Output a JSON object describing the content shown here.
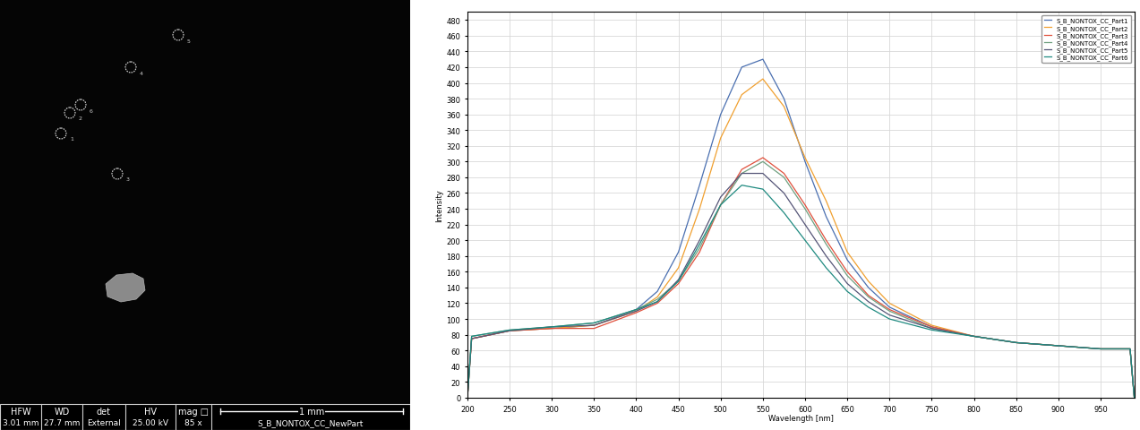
{
  "sem_image": {
    "circle_labels": [
      "1",
      "2",
      "3",
      "4",
      "5",
      "6"
    ],
    "data_bar": {
      "headers": [
        "HFW",
        "WD",
        "det",
        "HV",
        "mag □"
      ],
      "values": [
        "3.01 mm",
        "27.7 mm",
        "External",
        "25.00 kV",
        "85 x",
        "S_B_NONTOX_CC_NewPart"
      ],
      "scale_bar": "1 mm"
    }
  },
  "chart_data": {
    "type": "line",
    "x_label": "Wavelength [nm]",
    "y_label": "Intensity",
    "xlim": [
      200,
      990
    ],
    "xticks": [
      200,
      250,
      300,
      350,
      400,
      450,
      500,
      550,
      600,
      650,
      700,
      750,
      800,
      850,
      900,
      950
    ],
    "ylim": [
      0,
      490
    ],
    "yticks": [
      0,
      20,
      40,
      60,
      80,
      100,
      120,
      140,
      160,
      180,
      200,
      220,
      240,
      260,
      280,
      300,
      320,
      340,
      360,
      380,
      400,
      420,
      440,
      460,
      480
    ],
    "grid": true,
    "legend": "upper right",
    "x": [
      200,
      205,
      250,
      300,
      350,
      400,
      425,
      450,
      475,
      500,
      525,
      550,
      575,
      600,
      625,
      650,
      675,
      700,
      750,
      800,
      850,
      900,
      950,
      985,
      990
    ],
    "series": [
      {
        "name": "S_B_NONTOX_CC_Part1",
        "color": "#4a6fb0",
        "values": [
          0,
          75,
          85,
          88,
          92,
          112,
          135,
          185,
          270,
          360,
          420,
          430,
          380,
          300,
          230,
          175,
          140,
          115,
          90,
          78,
          70,
          66,
          62,
          62,
          0
        ]
      },
      {
        "name": "S_B_NONTOX_CC_Part2",
        "color": "#f0a030",
        "values": [
          0,
          75,
          85,
          88,
          92,
          110,
          128,
          165,
          240,
          330,
          385,
          405,
          370,
          305,
          250,
          185,
          148,
          120,
          92,
          78,
          70,
          66,
          62,
          62,
          0
        ]
      },
      {
        "name": "S_B_NONTOX_CC_Part3",
        "color": "#e0503c",
        "values": [
          0,
          75,
          85,
          88,
          88,
          108,
          120,
          145,
          185,
          245,
          290,
          305,
          285,
          245,
          200,
          160,
          130,
          112,
          90,
          78,
          70,
          66,
          62,
          62,
          0
        ]
      },
      {
        "name": "S_B_NONTOX_CC_Part4",
        "color": "#70a080",
        "values": [
          0,
          78,
          86,
          90,
          95,
          112,
          125,
          148,
          190,
          245,
          285,
          300,
          280,
          240,
          195,
          155,
          128,
          110,
          88,
          78,
          70,
          66,
          62,
          62,
          0
        ]
      },
      {
        "name": "S_B_NONTOX_CC_Part5",
        "color": "#555577",
        "values": [
          0,
          75,
          85,
          90,
          92,
          110,
          122,
          150,
          200,
          255,
          285,
          285,
          260,
          220,
          180,
          145,
          122,
          105,
          88,
          78,
          70,
          66,
          62,
          62,
          0
        ]
      },
      {
        "name": "S_B_NONTOX_CC_Part6",
        "color": "#1f8a80",
        "values": [
          0,
          78,
          86,
          90,
          95,
          112,
          122,
          148,
          195,
          245,
          270,
          265,
          235,
          200,
          165,
          135,
          115,
          100,
          86,
          78,
          70,
          66,
          62,
          62,
          0
        ]
      }
    ]
  }
}
